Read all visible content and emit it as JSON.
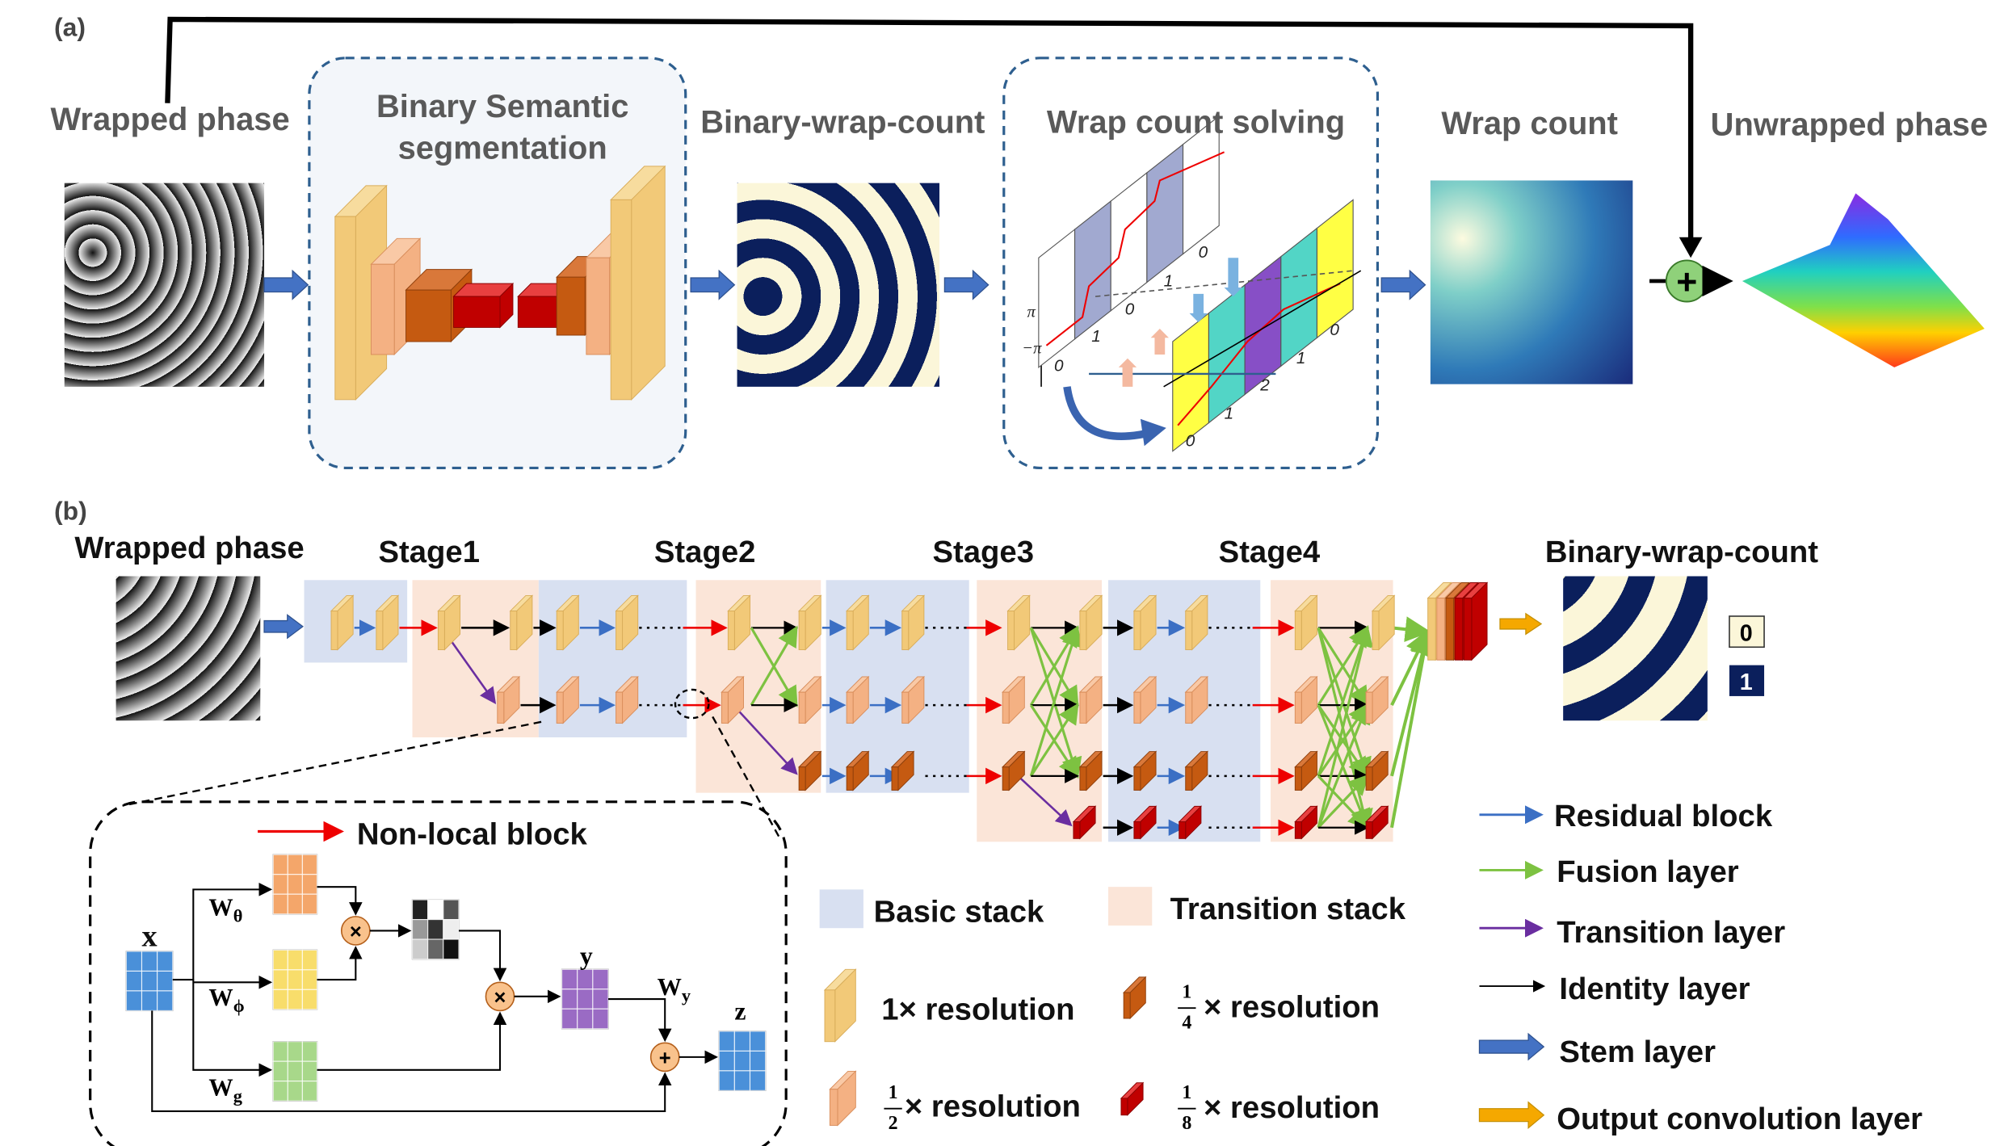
{
  "panel_a": {
    "label": "(a)",
    "wrapped_phase": "Wrapped phase",
    "segmentation": [
      "Binary Semantic",
      "segmentation"
    ],
    "binary_wrap_count": "Binary-wrap-count",
    "solving": "Wrap count solving",
    "wrap_count": "Wrap count",
    "unwrapped_phase": "Unwrapped phase",
    "plus": "+",
    "solving_axis": [
      "π",
      "−π"
    ],
    "solving_counts": [
      "0",
      "1",
      "0",
      "1",
      "0",
      "0",
      "1",
      "2",
      "1",
      "0"
    ]
  },
  "panel_b": {
    "label": "(b)",
    "input": "Wrapped phase",
    "stages": [
      "Stage1",
      "Stage2",
      "Stage3",
      "Stage4"
    ],
    "output": "Binary-wrap-count",
    "classes": [
      "0",
      "1"
    ],
    "non_local": {
      "title": "Non-local block",
      "x": "x",
      "w": "W",
      "subs": [
        "θ",
        "ϕ",
        "g",
        "y"
      ],
      "y": "y",
      "z": "z",
      "times": "×",
      "plus": "+"
    },
    "stacks": [
      "Basic stack",
      "Transition stack"
    ],
    "resolutions": [
      {
        "text": "1× resolution"
      },
      {
        "num": "1",
        "den": "2",
        "text": "× resolution"
      },
      {
        "num": "1",
        "den": "4",
        "text": "× resolution"
      },
      {
        "num": "1",
        "den": "8",
        "text": "× resolution"
      }
    ],
    "layers": [
      "Residual block",
      "Fusion layer",
      "Transition layer",
      "Identity layer",
      "Stem layer",
      "Output convolution layer"
    ]
  }
}
